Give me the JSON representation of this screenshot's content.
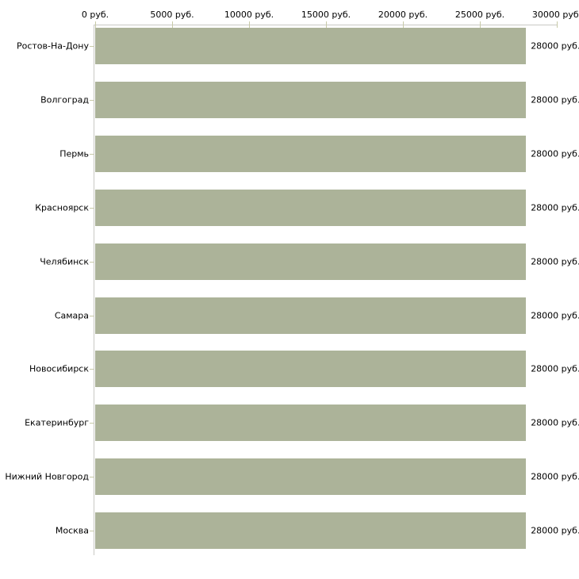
{
  "chart_data": {
    "type": "bar",
    "orientation": "horizontal",
    "title": "",
    "categories": [
      "Ростов-На-Дону",
      "Волгоград",
      "Пермь",
      "Красноярск",
      "Челябинск",
      "Самара",
      "Новосибирск",
      "Екатеринбург",
      "Нижний Новгород",
      "Москва"
    ],
    "values": [
      28000,
      28000,
      28000,
      28000,
      28000,
      28000,
      28000,
      28000,
      28000,
      28000
    ],
    "value_labels": [
      "28000 руб.",
      "28000 руб.",
      "28000 руб.",
      "28000 руб.",
      "28000 руб.",
      "28000 руб.",
      "28000 руб.",
      "28000 руб.",
      "28000 руб.",
      "28000 руб."
    ],
    "x_axis": {
      "position": "top",
      "xlim": [
        0,
        30000
      ],
      "ticks": [
        0,
        5000,
        10000,
        15000,
        20000,
        25000,
        30000
      ],
      "tick_labels": [
        "0 руб.",
        "5000 руб.",
        "10000 руб.",
        "15000 руб.",
        "20000 руб.",
        "25000 руб.",
        "30000 руб."
      ]
    },
    "grid": false,
    "legend": null,
    "colors": {
      "bar": "#acb399",
      "axis_line": "#c9c9c4",
      "tick_mark": "#c8caa8",
      "category_tick": "#c8caa8",
      "text": "#000000",
      "background": "#ffffff"
    }
  }
}
